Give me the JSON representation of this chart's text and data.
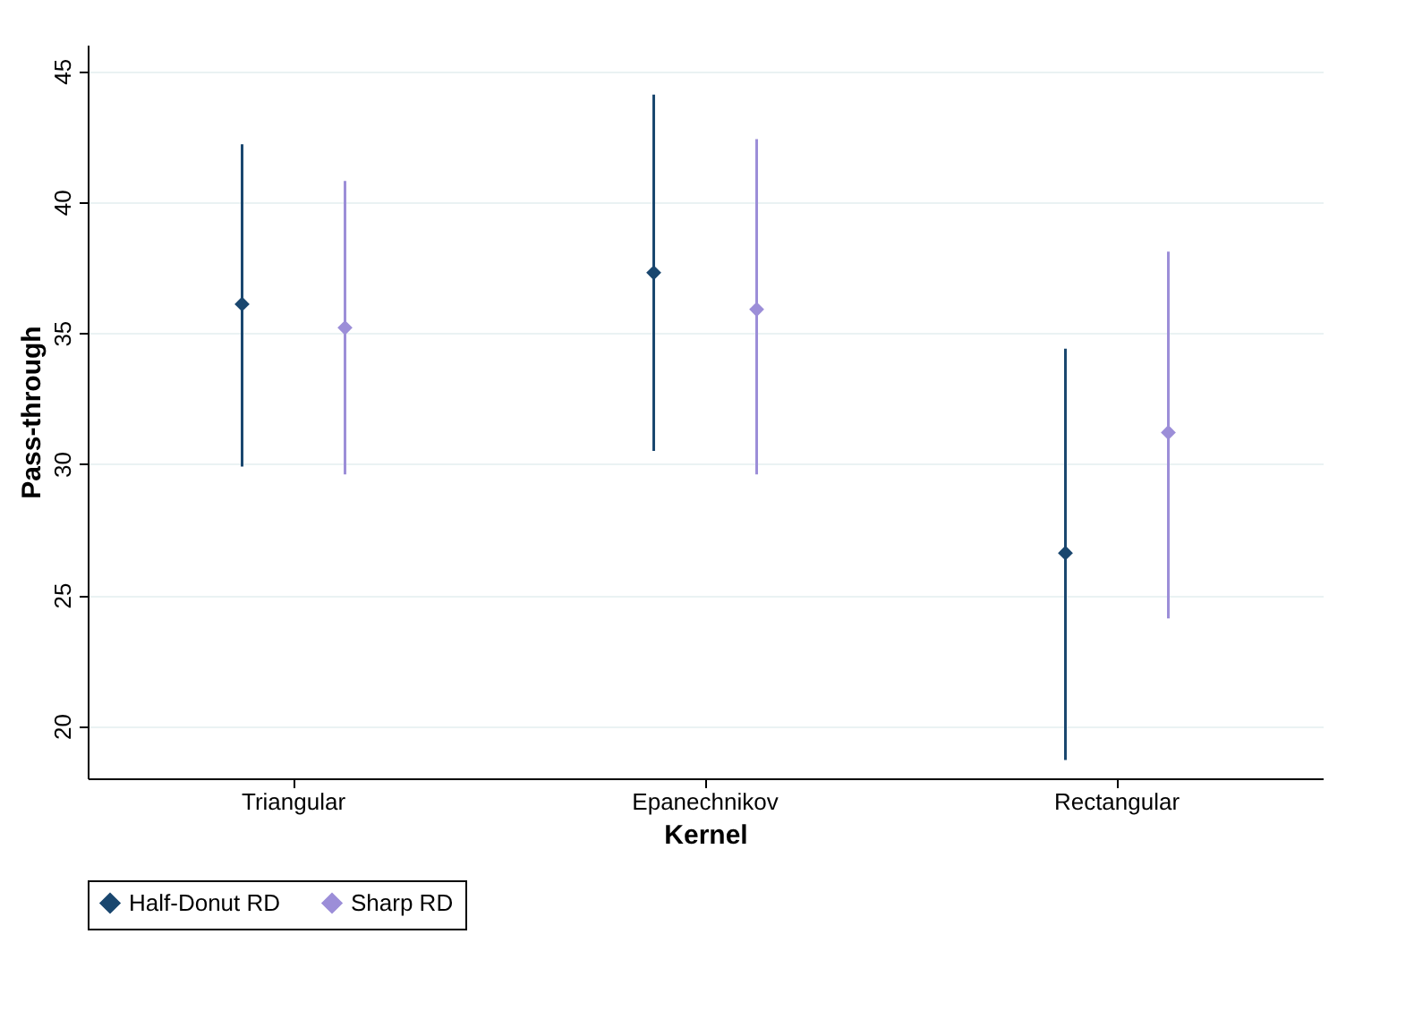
{
  "chart_data": {
    "type": "scatter",
    "xlabel": "Kernel",
    "ylabel": "Pass-through",
    "categories": [
      "Triangular",
      "Epanechnikov",
      "Rectangular"
    ],
    "series": [
      {
        "name": "Half-Donut RD",
        "color": "#1a476f",
        "values": [
          36.1,
          37.3,
          26.6
        ],
        "errors": [
          [
            29.9,
            42.2
          ],
          [
            30.5,
            44.1
          ],
          [
            18.7,
            34.4
          ]
        ]
      },
      {
        "name": "Sharp RD",
        "color": "#9c8ed8",
        "values": [
          35.2,
          35.9,
          31.2
        ],
        "errors": [
          [
            29.6,
            40.8
          ],
          [
            29.6,
            42.4
          ],
          [
            24.1,
            38.1
          ]
        ]
      }
    ],
    "ylim": [
      18,
      46
    ],
    "yticks": [
      20,
      25,
      30,
      35,
      40,
      45
    ],
    "grid": "y",
    "legend": "bottom",
    "marker": "diamond"
  }
}
